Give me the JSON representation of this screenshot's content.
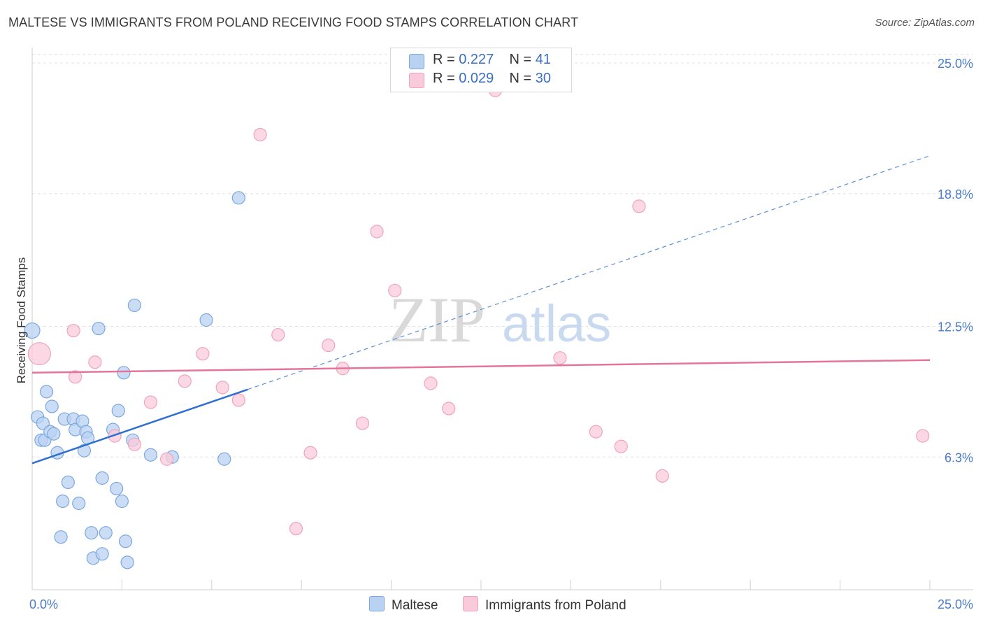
{
  "title": "MALTESE VS IMMIGRANTS FROM POLAND RECEIVING FOOD STAMPS CORRELATION CHART",
  "source": "Source: ZipAtlas.com",
  "watermark": {
    "zip": "ZIP",
    "atlas": "atlas"
  },
  "legend": {
    "r_label": "R =",
    "n_label": "N =",
    "rows": [
      {
        "r": "0.227",
        "n": "41"
      },
      {
        "r": "0.029",
        "n": "30"
      }
    ]
  },
  "chart_data": {
    "type": "scatter",
    "title": "MALTESE VS IMMIGRANTS FROM POLAND RECEIVING FOOD STAMPS CORRELATION CHART",
    "xlabel": "",
    "ylabel": "Receiving Food Stamps",
    "xlim": [
      0,
      25
    ],
    "ylim": [
      0,
      25.6
    ],
    "x_tick_labels": [
      "0.0%",
      "25.0%"
    ],
    "y_ticks": [
      6.3,
      12.5,
      18.8,
      25.0
    ],
    "y_tick_labels": [
      "6.3%",
      "12.5%",
      "18.8%",
      "25.0%"
    ],
    "grid": "horizontal dashed",
    "legend_position": "top-center and bottom",
    "series": [
      {
        "name": "Maltese",
        "color": "#7ba7e0",
        "fill": "#b9d2f2",
        "r": 0.227,
        "n": 41,
        "trend": {
          "x0": 0,
          "y0": 6.0,
          "x1": 25,
          "y1": 20.6,
          "solid_until": 6.0
        },
        "points": [
          [
            0.0,
            12.3,
            11
          ],
          [
            0.15,
            8.2,
            9
          ],
          [
            0.25,
            7.1,
            9
          ],
          [
            0.3,
            7.9,
            9
          ],
          [
            0.35,
            7.1,
            9
          ],
          [
            0.4,
            9.4,
            9
          ],
          [
            0.5,
            7.5,
            9
          ],
          [
            0.55,
            8.7,
            9
          ],
          [
            0.6,
            7.4,
            9
          ],
          [
            0.7,
            6.5,
            9
          ],
          [
            0.8,
            2.5,
            9
          ],
          [
            0.85,
            4.2,
            9
          ],
          [
            0.9,
            8.1,
            9
          ],
          [
            1.0,
            5.1,
            9
          ],
          [
            1.15,
            8.1,
            9
          ],
          [
            1.2,
            7.6,
            9
          ],
          [
            1.3,
            4.1,
            9
          ],
          [
            1.4,
            8.0,
            9
          ],
          [
            1.45,
            6.6,
            9
          ],
          [
            1.5,
            7.5,
            9
          ],
          [
            1.55,
            7.2,
            9
          ],
          [
            1.65,
            2.7,
            9
          ],
          [
            1.7,
            1.5,
            9
          ],
          [
            1.85,
            12.4,
            9
          ],
          [
            1.95,
            1.7,
            9
          ],
          [
            1.95,
            5.3,
            9
          ],
          [
            2.05,
            2.7,
            9
          ],
          [
            2.25,
            7.6,
            9
          ],
          [
            2.35,
            4.8,
            9
          ],
          [
            2.4,
            8.5,
            9
          ],
          [
            2.5,
            4.2,
            9
          ],
          [
            2.55,
            10.3,
            9
          ],
          [
            2.6,
            2.3,
            9
          ],
          [
            2.65,
            1.3,
            9
          ],
          [
            2.8,
            7.1,
            9
          ],
          [
            2.85,
            13.5,
            9
          ],
          [
            3.3,
            6.4,
            9
          ],
          [
            3.9,
            6.3,
            9
          ],
          [
            4.85,
            12.8,
            9
          ],
          [
            5.35,
            6.2,
            9
          ],
          [
            5.75,
            18.6,
            9
          ]
        ]
      },
      {
        "name": "Immigrants from Poland",
        "color": "#f0a3bd",
        "fill": "#f9cbda",
        "r": 0.029,
        "n": 30,
        "trend": {
          "x0": 0,
          "y0": 10.3,
          "x1": 25,
          "y1": 10.9
        },
        "points": [
          [
            0.2,
            11.2,
            16
          ],
          [
            1.2,
            10.1,
            9
          ],
          [
            1.15,
            12.3,
            9
          ],
          [
            1.75,
            10.8,
            9
          ],
          [
            2.3,
            7.3,
            9
          ],
          [
            2.85,
            6.9,
            9
          ],
          [
            3.3,
            8.9,
            9
          ],
          [
            3.75,
            6.2,
            9
          ],
          [
            4.25,
            9.9,
            9
          ],
          [
            4.75,
            11.2,
            9
          ],
          [
            5.3,
            9.6,
            9
          ],
          [
            5.75,
            9.0,
            9
          ],
          [
            6.35,
            21.6,
            9
          ],
          [
            6.85,
            12.1,
            9
          ],
          [
            7.35,
            2.9,
            9
          ],
          [
            7.75,
            6.5,
            9
          ],
          [
            8.25,
            11.6,
            9
          ],
          [
            8.65,
            10.5,
            9
          ],
          [
            9.2,
            7.9,
            9
          ],
          [
            9.6,
            17.0,
            9
          ],
          [
            10.1,
            14.2,
            9
          ],
          [
            11.1,
            9.8,
            9
          ],
          [
            11.6,
            8.6,
            9
          ],
          [
            12.9,
            23.7,
            9
          ],
          [
            14.7,
            11.0,
            9
          ],
          [
            15.7,
            7.5,
            9
          ],
          [
            16.4,
            6.8,
            9
          ],
          [
            16.9,
            18.2,
            9
          ],
          [
            17.55,
            5.4,
            9
          ],
          [
            24.8,
            7.3,
            9
          ]
        ]
      }
    ]
  }
}
